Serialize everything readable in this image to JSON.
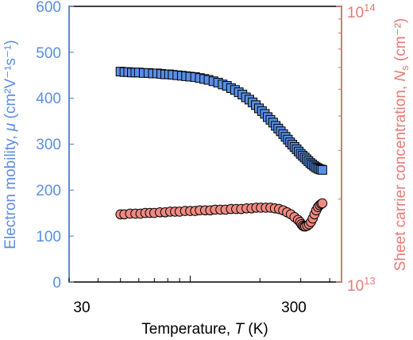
{
  "colors": {
    "left_axis": "#5b8ee5",
    "right_axis": "#e87a75",
    "mobility_fill": "#5b8ee5",
    "concentration_fill": "#ee8a82",
    "marker_edge": "#000000",
    "frame": "#000000"
  },
  "chart_data": {
    "type": "scatter",
    "xlabel": {
      "prefix": "Temperature, ",
      "var": "T",
      "suffix": " (K)"
    },
    "x_scale": "log",
    "xlim": [
      30,
      450
    ],
    "x_ticks": [
      30,
      300
    ],
    "x_tick_labels": [
      "30",
      "300"
    ],
    "y_left": {
      "label": {
        "prefix": "Electron mobility, ",
        "var": "μ",
        "unit": " (cm²V⁻¹s⁻¹)"
      },
      "ylim": [
        0,
        600
      ],
      "ticks": [
        0,
        100,
        200,
        300,
        400,
        500,
        600
      ],
      "tick_labels": [
        "0",
        "100",
        "200",
        "300",
        "400",
        "500",
        "600"
      ]
    },
    "y_right": {
      "label": {
        "prefix": "Sheet carrier concentration, ",
        "var": "N",
        "sub": "s",
        "unit": " (cm⁻²)"
      },
      "scale": "log",
      "ylim": [
        10000000000000.0,
        100000000000000.0
      ],
      "tick_labels": [
        {
          "value": 10000000000000.0,
          "base": "10",
          "exp": "13"
        },
        {
          "value": 100000000000000.0,
          "base": "10",
          "exp": "14"
        }
      ]
    },
    "grid": false,
    "legend": "none",
    "series": [
      {
        "axis": "left",
        "marker": "square",
        "x": [
          50,
          52,
          54,
          56,
          58,
          60,
          63,
          66,
          69,
          72,
          75,
          78,
          81,
          84,
          88,
          92,
          96,
          100,
          105,
          110,
          115,
          120,
          126,
          132,
          138,
          144,
          150,
          156,
          162,
          168,
          174,
          180,
          186,
          192,
          198,
          204,
          210,
          216,
          222,
          228,
          234,
          240,
          246,
          252,
          258,
          264,
          270,
          276,
          282,
          288,
          294,
          300,
          306,
          312,
          318,
          324,
          330,
          336,
          342,
          348,
          354,
          360,
          366,
          372
        ],
        "y": [
          458,
          457,
          457,
          456,
          456,
          456,
          455,
          455,
          454,
          454,
          453,
          452,
          452,
          451,
          450,
          449,
          448,
          447,
          446,
          444,
          442,
          440,
          437,
          434,
          430,
          427,
          422,
          418,
          413,
          408,
          402,
          397,
          391,
          385,
          378,
          372,
          366,
          359,
          353,
          347,
          340,
          334,
          328,
          322,
          316,
          310,
          304,
          299,
          294,
          289,
          284,
          279,
          275,
          271,
          267,
          263,
          259,
          256,
          253,
          250,
          248,
          246,
          245,
          244
        ]
      },
      {
        "axis": "right",
        "marker": "circle",
        "x": [
          50,
          52,
          55,
          58,
          61,
          64,
          67,
          70,
          74,
          78,
          82,
          86,
          90,
          95,
          100,
          105,
          110,
          116,
          122,
          128,
          135,
          142,
          150,
          158,
          166,
          175,
          184,
          193,
          202,
          212,
          222,
          232,
          242,
          252,
          262,
          272,
          282,
          292,
          298,
          302,
          306,
          310,
          314,
          320,
          326,
          332,
          338,
          344,
          350,
          356,
          362,
          368,
          372
        ],
        "y": [
          17600000000000.0,
          17600000000000.0,
          17700000000000.0,
          17700000000000.0,
          17700000000000.0,
          17800000000000.0,
          17800000000000.0,
          17800000000000.0,
          17900000000000.0,
          17900000000000.0,
          18000000000000.0,
          18000000000000.0,
          18000000000000.0,
          18100000000000.0,
          18100000000000.0,
          18100000000000.0,
          18200000000000.0,
          18200000000000.0,
          18200000000000.0,
          18300000000000.0,
          18300000000000.0,
          18300000000000.0,
          18400000000000.0,
          18400000000000.0,
          18400000000000.0,
          18500000000000.0,
          18500000000000.0,
          18600000000000.0,
          18600000000000.0,
          18600000000000.0,
          18600000000000.0,
          18500000000000.0,
          18400000000000.0,
          18200000000000.0,
          17900000000000.0,
          17600000000000.0,
          17200000000000.0,
          16800000000000.0,
          16500000000000.0,
          16200000000000.0,
          16000000000000.0,
          15900000000000.0,
          15900000000000.0,
          16000000000000.0,
          16200000000000.0,
          16500000000000.0,
          17000000000000.0,
          17600000000000.0,
          18200000000000.0,
          18700000000000.0,
          19000000000000.0,
          19200000000000.0,
          19300000000000.0
        ]
      }
    ]
  }
}
